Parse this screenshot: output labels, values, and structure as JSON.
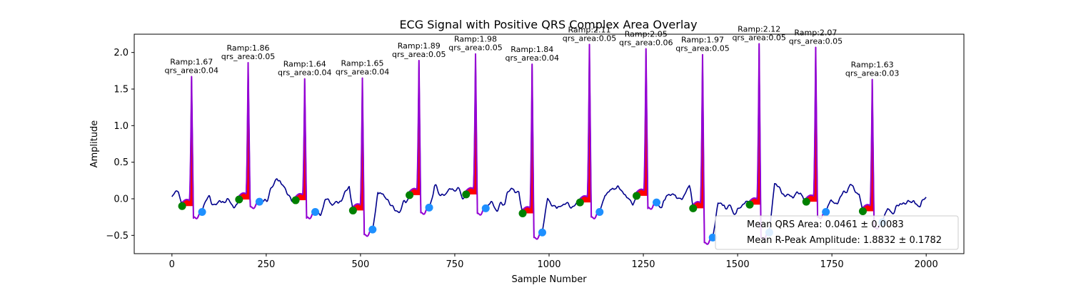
{
  "chart_data": {
    "type": "line",
    "title": "ECG Signal with Positive QRS Complex Area Overlay",
    "xlabel": "Sample Number",
    "ylabel": "Amplitude",
    "xlim": [
      -100,
      2100
    ],
    "ylim": [
      -0.75,
      2.25
    ],
    "xticks": [
      0,
      250,
      500,
      750,
      1000,
      1250,
      1500,
      1750,
      2000
    ],
    "yticks": [
      -0.5,
      0.0,
      0.5,
      1.0,
      1.5,
      2.0
    ],
    "xtick_labels": [
      "0",
      "250",
      "500",
      "750",
      "1000",
      "1250",
      "1500",
      "1750",
      "2000"
    ],
    "ytick_labels": [
      "−0.5",
      "0.0",
      "0.5",
      "1.0",
      "1.5",
      "2.0"
    ],
    "grid": false,
    "colors": {
      "signal": "#00008b",
      "qrs_segment": "#9400d3",
      "qrs_fill": "#ff0000",
      "onset_marker": "#008000",
      "offset_marker": "#1e90ff"
    },
    "series": [
      {
        "name": "ECG Signal",
        "x_start": 0,
        "x_end": 2000,
        "baseline": 0.0
      }
    ],
    "beats": [
      {
        "r_x": 52,
        "r_amp": 1.67,
        "onset": [
          27,
          -0.1
        ],
        "offset": [
          80,
          -0.18
        ],
        "ramp_label": "Ramp:1.67",
        "area_label": "qrs_area:0.04"
      },
      {
        "r_x": 202,
        "r_amp": 1.86,
        "onset": [
          178,
          -0.01
        ],
        "offset": [
          232,
          -0.04
        ],
        "ramp_label": "Ramp:1.86",
        "area_label": "qrs_area:0.05"
      },
      {
        "r_x": 352,
        "r_amp": 1.64,
        "onset": [
          328,
          -0.02
        ],
        "offset": [
          380,
          -0.18
        ],
        "ramp_label": "Ramp:1.64",
        "area_label": "qrs_area:0.04"
      },
      {
        "r_x": 505,
        "r_amp": 1.65,
        "onset": [
          480,
          -0.16
        ],
        "offset": [
          532,
          -0.42
        ],
        "ramp_label": "Ramp:1.65",
        "area_label": "qrs_area:0.04"
      },
      {
        "r_x": 655,
        "r_amp": 1.89,
        "onset": [
          630,
          0.05
        ],
        "offset": [
          682,
          -0.12
        ],
        "ramp_label": "Ramp:1.89",
        "area_label": "qrs_area:0.05"
      },
      {
        "r_x": 805,
        "r_amp": 1.98,
        "onset": [
          780,
          0.06
        ],
        "offset": [
          832,
          -0.13
        ],
        "ramp_label": "Ramp:1.98",
        "area_label": "qrs_area:0.05"
      },
      {
        "r_x": 955,
        "r_amp": 1.84,
        "onset": [
          930,
          -0.2
        ],
        "offset": [
          982,
          -0.46
        ],
        "ramp_label": "Ramp:1.84",
        "area_label": "qrs_area:0.04"
      },
      {
        "r_x": 1107,
        "r_amp": 2.11,
        "onset": [
          1082,
          -0.05
        ],
        "offset": [
          1134,
          -0.18
        ],
        "ramp_label": "Ramp:2.11",
        "area_label": "qrs_area:0.05"
      },
      {
        "r_x": 1257,
        "r_amp": 2.05,
        "onset": [
          1232,
          0.04
        ],
        "offset": [
          1285,
          -0.05
        ],
        "ramp_label": "Ramp:2.05",
        "area_label": "qrs_area:0.06"
      },
      {
        "r_x": 1407,
        "r_amp": 1.97,
        "onset": [
          1382,
          -0.13
        ],
        "offset": [
          1434,
          -0.53
        ],
        "ramp_label": "Ramp:1.97",
        "area_label": "qrs_area:0.05"
      },
      {
        "r_x": 1557,
        "r_amp": 2.12,
        "onset": [
          1532,
          -0.08
        ],
        "offset": [
          1584,
          -0.46
        ],
        "ramp_label": "Ramp:2.12",
        "area_label": "qrs_area:0.05"
      },
      {
        "r_x": 1707,
        "r_amp": 2.07,
        "onset": [
          1682,
          -0.04
        ],
        "offset": [
          1734,
          -0.18
        ],
        "ramp_label": "Ramp:2.07",
        "area_label": "qrs_area:0.05"
      },
      {
        "r_x": 1857,
        "r_amp": 1.63,
        "onset": [
          1832,
          -0.17
        ],
        "offset": [
          1884,
          -0.32
        ],
        "ramp_label": "Ramp:1.63",
        "area_label": "qrs_area:0.03"
      }
    ],
    "legend": {
      "location": "lower-right",
      "entries": [
        "Mean QRS Area: 0.0461 ± 0.0083",
        "Mean R-Peak Amplitude: 1.8832 ± 0.1782"
      ]
    }
  }
}
